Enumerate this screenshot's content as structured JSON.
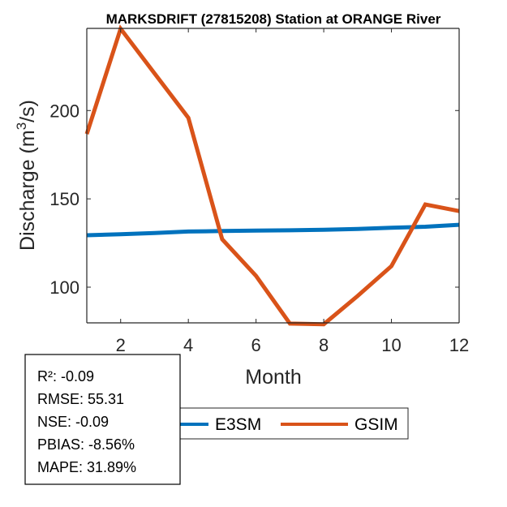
{
  "chart_data": {
    "type": "line",
    "title": "MARKSDRIFT (27815208)  Station at  ORANGE  River",
    "xlabel": "Month",
    "ylabel": "Discharge (m",
    "ylabel_superscript": "3",
    "ylabel_suffix": "/s)",
    "xlim": [
      1,
      12
    ],
    "ylim": [
      79.8,
      246.5
    ],
    "xticks": [
      2,
      4,
      6,
      8,
      10,
      12
    ],
    "xtick_labels": [
      "2",
      "4",
      "6",
      "8",
      "10",
      "12"
    ],
    "yticks": [
      100,
      150,
      200
    ],
    "ytick_labels": [
      "100",
      "150",
      "200"
    ],
    "grid": false,
    "x": [
      1,
      2,
      3,
      4,
      5,
      6,
      7,
      8,
      9,
      10,
      11,
      12
    ],
    "series": [
      {
        "name": "E3SM",
        "color": "#0072BD",
        "values": [
          129.4,
          130.0,
          130.7,
          131.5,
          131.8,
          132.0,
          132.2,
          132.5,
          133.0,
          133.6,
          134.2,
          135.3
        ]
      },
      {
        "name": "GSIM",
        "color": "#D95319",
        "values": [
          186.7,
          246.3,
          221.0,
          195.9,
          127.1,
          106.4,
          79.4,
          79.0,
          95.0,
          111.9,
          146.8,
          143.1
        ]
      }
    ],
    "legend": {
      "placement": "bottom-center",
      "orientation": "horizontal",
      "entries": [
        "E3SM",
        "GSIM"
      ]
    },
    "annotation": {
      "placement": "bottom-left",
      "lines": [
        "R²: -0.09",
        "RMSE: 55.31",
        "NSE: -0.09",
        "PBIAS: -8.56%",
        "MAPE: 31.89%"
      ]
    }
  }
}
